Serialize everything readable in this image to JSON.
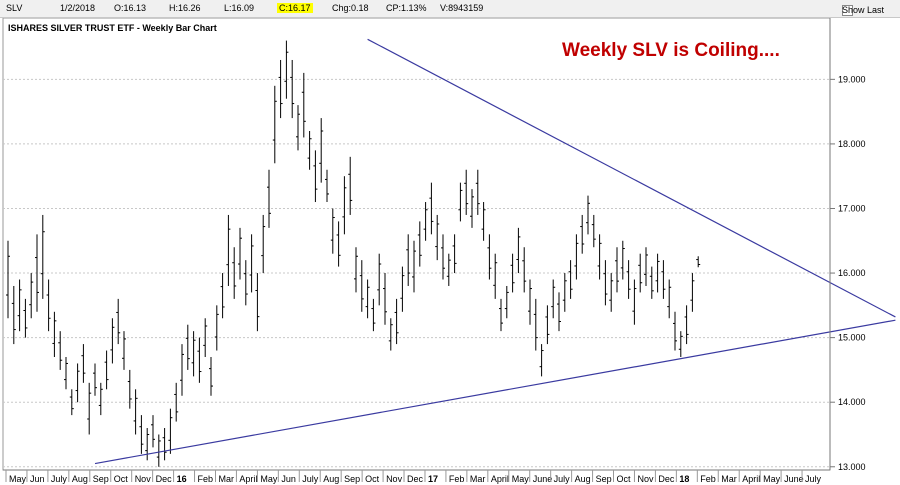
{
  "header": {
    "symbol": "SLV",
    "date": "1/2/2018",
    "open": "O:16.13",
    "high": "H:16.26",
    "low": "L:16.09",
    "close": "C:16.17",
    "change": "Chg:0.18",
    "change_pct": "CP:1.13%",
    "volume": "V:8943159",
    "show_last_label": "Show Last"
  },
  "chart_data": {
    "type": "ohlc-bar",
    "title": "ISHARES SILVER TRUST ETF - Weekly Bar Chart",
    "annotation": "Weekly SLV is Coiling....",
    "ylim": [
      12.95,
      19.95
    ],
    "y_ticks": [
      "13.000",
      "14.000",
      "15.000",
      "16.000",
      "17.000",
      "18.000",
      "19.000"
    ],
    "x_tick_labels": [
      "May",
      "Jun",
      "July",
      "Aug",
      "Sep",
      "Oct",
      "Nov",
      "Dec",
      "16",
      "Feb",
      "Mar",
      "April",
      "May",
      "Jun",
      "July",
      "Aug",
      "Sep",
      "Oct",
      "Nov",
      "Dec",
      "17",
      "Feb",
      "Mar",
      "April",
      "May",
      "June",
      "July",
      "Aug",
      "Sep",
      "Oct",
      "Nov",
      "Dec",
      "18",
      "Feb",
      "Mar",
      "April",
      "May",
      "June",
      "July"
    ],
    "bold_x_labels": [
      "16",
      "17",
      "18"
    ],
    "colors": {
      "bars": "#000000",
      "trendlines": "#3a3aa0",
      "grid": "#c8c8c8",
      "annotation": "#c00000"
    },
    "trendlines": [
      {
        "from": [
          15,
          13.05
        ],
        "to": [
          153,
          15.27
        ]
      },
      {
        "from": [
          62,
          19.62
        ],
        "to": [
          153,
          15.32
        ]
      }
    ],
    "bars": [
      [
        16.5,
        15.3
      ],
      [
        15.8,
        14.9
      ],
      [
        15.9,
        15.1
      ],
      [
        15.6,
        15.0
      ],
      [
        16.0,
        15.3
      ],
      [
        16.6,
        15.4
      ],
      [
        16.9,
        15.6
      ],
      [
        15.9,
        15.1
      ],
      [
        15.4,
        14.7
      ],
      [
        15.1,
        14.5
      ],
      [
        14.7,
        14.2
      ],
      [
        14.2,
        13.8
      ],
      [
        14.6,
        14.0
      ],
      [
        14.9,
        14.3
      ],
      [
        14.3,
        13.5
      ],
      [
        14.6,
        14.1
      ],
      [
        14.3,
        13.8
      ],
      [
        14.8,
        14.2
      ],
      [
        15.3,
        14.6
      ],
      [
        15.6,
        14.9
      ],
      [
        15.1,
        14.5
      ],
      [
        14.5,
        13.9
      ],
      [
        14.2,
        13.5
      ],
      [
        13.8,
        13.2
      ],
      [
        13.6,
        13.1
      ],
      [
        13.8,
        13.3
      ],
      [
        13.5,
        13.0
      ],
      [
        13.6,
        13.1
      ],
      [
        13.9,
        13.2
      ],
      [
        14.3,
        13.7
      ],
      [
        14.9,
        14.1
      ],
      [
        15.2,
        14.5
      ],
      [
        15.1,
        14.4
      ],
      [
        15.0,
        14.3
      ],
      [
        15.3,
        14.7
      ],
      [
        14.7,
        14.1
      ],
      [
        15.5,
        14.8
      ],
      [
        16.0,
        15.3
      ],
      [
        16.9,
        15.8
      ],
      [
        16.4,
        15.6
      ],
      [
        16.7,
        15.9
      ],
      [
        16.2,
        15.5
      ],
      [
        16.6,
        15.7
      ],
      [
        16.0,
        15.1
      ],
      [
        16.9,
        16.0
      ],
      [
        17.6,
        16.7
      ],
      [
        18.9,
        17.7
      ],
      [
        19.3,
        18.4
      ],
      [
        19.6,
        18.7
      ],
      [
        19.3,
        18.4
      ],
      [
        18.6,
        17.9
      ],
      [
        19.1,
        18.1
      ],
      [
        18.2,
        17.6
      ],
      [
        17.9,
        17.1
      ],
      [
        18.4,
        17.4
      ],
      [
        17.6,
        17.1
      ],
      [
        17.0,
        16.3
      ],
      [
        16.8,
        16.1
      ],
      [
        17.5,
        16.6
      ],
      [
        17.8,
        16.9
      ],
      [
        16.4,
        15.7
      ],
      [
        16.2,
        15.4
      ],
      [
        15.9,
        15.3
      ],
      [
        15.6,
        15.1
      ],
      [
        16.3,
        15.5
      ],
      [
        16.0,
        15.2
      ],
      [
        15.3,
        14.8
      ],
      [
        15.6,
        14.9
      ],
      [
        16.1,
        15.4
      ],
      [
        16.6,
        15.8
      ],
      [
        16.5,
        15.7
      ],
      [
        16.8,
        16.1
      ],
      [
        17.1,
        16.5
      ],
      [
        17.4,
        16.6
      ],
      [
        16.9,
        16.2
      ],
      [
        16.6,
        15.9
      ],
      [
        16.3,
        15.8
      ],
      [
        16.6,
        16.0
      ],
      [
        17.4,
        16.8
      ],
      [
        17.6,
        16.9
      ],
      [
        17.3,
        16.7
      ],
      [
        17.6,
        16.9
      ],
      [
        17.1,
        16.5
      ],
      [
        16.6,
        15.9
      ],
      [
        16.3,
        15.6
      ],
      [
        15.6,
        15.1
      ],
      [
        15.8,
        15.3
      ],
      [
        16.3,
        15.7
      ],
      [
        16.7,
        16.0
      ],
      [
        16.4,
        15.7
      ],
      [
        15.9,
        15.2
      ],
      [
        15.6,
        14.8
      ],
      [
        14.9,
        14.4
      ],
      [
        15.5,
        14.9
      ],
      [
        15.9,
        15.3
      ],
      [
        15.7,
        15.1
      ],
      [
        16.0,
        15.4
      ],
      [
        16.2,
        15.6
      ],
      [
        16.6,
        15.9
      ],
      [
        16.9,
        16.3
      ],
      [
        17.2,
        16.6
      ],
      [
        16.9,
        16.4
      ],
      [
        16.6,
        15.9
      ],
      [
        16.2,
        15.5
      ],
      [
        16.0,
        15.4
      ],
      [
        16.4,
        15.7
      ],
      [
        16.5,
        15.9
      ],
      [
        16.2,
        15.6
      ],
      [
        15.9,
        15.2
      ],
      [
        16.3,
        15.7
      ],
      [
        16.4,
        15.8
      ],
      [
        16.1,
        15.6
      ],
      [
        16.3,
        15.7
      ],
      [
        16.2,
        15.6
      ],
      [
        15.9,
        15.3
      ],
      [
        15.4,
        14.8
      ],
      [
        15.1,
        14.7
      ],
      [
        15.5,
        14.9
      ],
      [
        16.0,
        15.4
      ],
      [
        16.26,
        16.09
      ]
    ]
  }
}
